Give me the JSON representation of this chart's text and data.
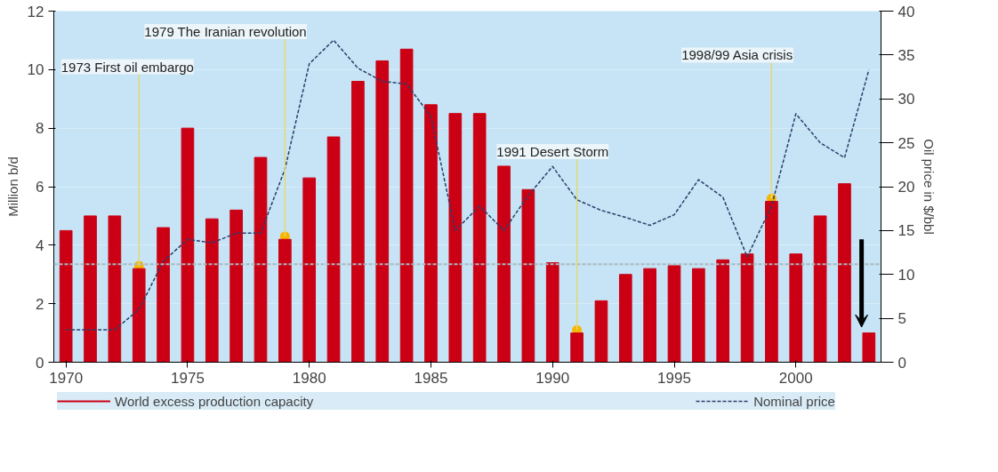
{
  "chart_data": {
    "type": "bar",
    "ylabel": "Million b/d",
    "y2label": "Oil price in $/bbl",
    "x": [
      1970,
      1971,
      1972,
      1973,
      1974,
      1975,
      1976,
      1977,
      1978,
      1979,
      1980,
      1981,
      1982,
      1983,
      1984,
      1985,
      1986,
      1987,
      1988,
      1989,
      1990,
      1991,
      1992,
      1993,
      1994,
      1995,
      1996,
      1997,
      1998,
      1999,
      2000,
      2001,
      2002,
      2003
    ],
    "series": [
      {
        "name": "World excess production capacity",
        "color": "#cc0014",
        "values": [
          4.5,
          5.0,
          5.0,
          3.2,
          4.6,
          8.0,
          4.9,
          5.2,
          7.0,
          4.2,
          6.3,
          7.7,
          9.6,
          10.3,
          10.7,
          8.8,
          8.5,
          8.5,
          6.7,
          5.9,
          3.4,
          1.0,
          2.1,
          3.0,
          3.2,
          3.3,
          3.2,
          3.5,
          3.7,
          5.5,
          3.7,
          5.0,
          6.1,
          1.0
        ]
      },
      {
        "name": "Nominal price",
        "type": "line",
        "axis": "y2",
        "color": "#2b3d6b",
        "line_style": "dashed",
        "values": [
          3.7,
          3.7,
          3.7,
          6,
          11.5,
          14,
          13.6,
          14.7,
          14.7,
          22,
          34,
          36.7,
          33.5,
          32,
          31.7,
          28,
          15,
          17.8,
          15,
          19,
          22.3,
          18.5,
          17.3,
          16.5,
          15.6,
          16.8,
          20.8,
          18.8,
          12,
          17.8,
          28.3,
          25,
          23.3,
          33.3
        ]
      }
    ],
    "xlim": [
      1969.5,
      2003.5
    ],
    "xticks": [
      1970,
      1975,
      1980,
      1985,
      1990,
      1995,
      2000
    ],
    "ylim": [
      0,
      12
    ],
    "yticks": [
      0,
      2,
      4,
      6,
      8,
      10,
      12
    ],
    "y2lim": [
      0,
      40
    ],
    "y2ticks": [
      0,
      5,
      10,
      15,
      20,
      25,
      30,
      35,
      40
    ],
    "ref_lines": [
      {
        "axis": "y",
        "value": 3.35,
        "color": "#a9b8c0",
        "line_style": "dashed"
      }
    ],
    "annotations": [
      {
        "text": "1979 The Iranian revolution",
        "x": 1979,
        "y": 4.3
      },
      {
        "text": "1973 First oil embargo",
        "x": 1973,
        "y": 3.3
      },
      {
        "text": "1991 Desert Storm",
        "x": 1991,
        "y": 1.1
      },
      {
        "text": "1998/99 Asia crisis",
        "x": 1999,
        "y": 5.6
      }
    ],
    "grid": "y",
    "legend": "bottom"
  }
}
